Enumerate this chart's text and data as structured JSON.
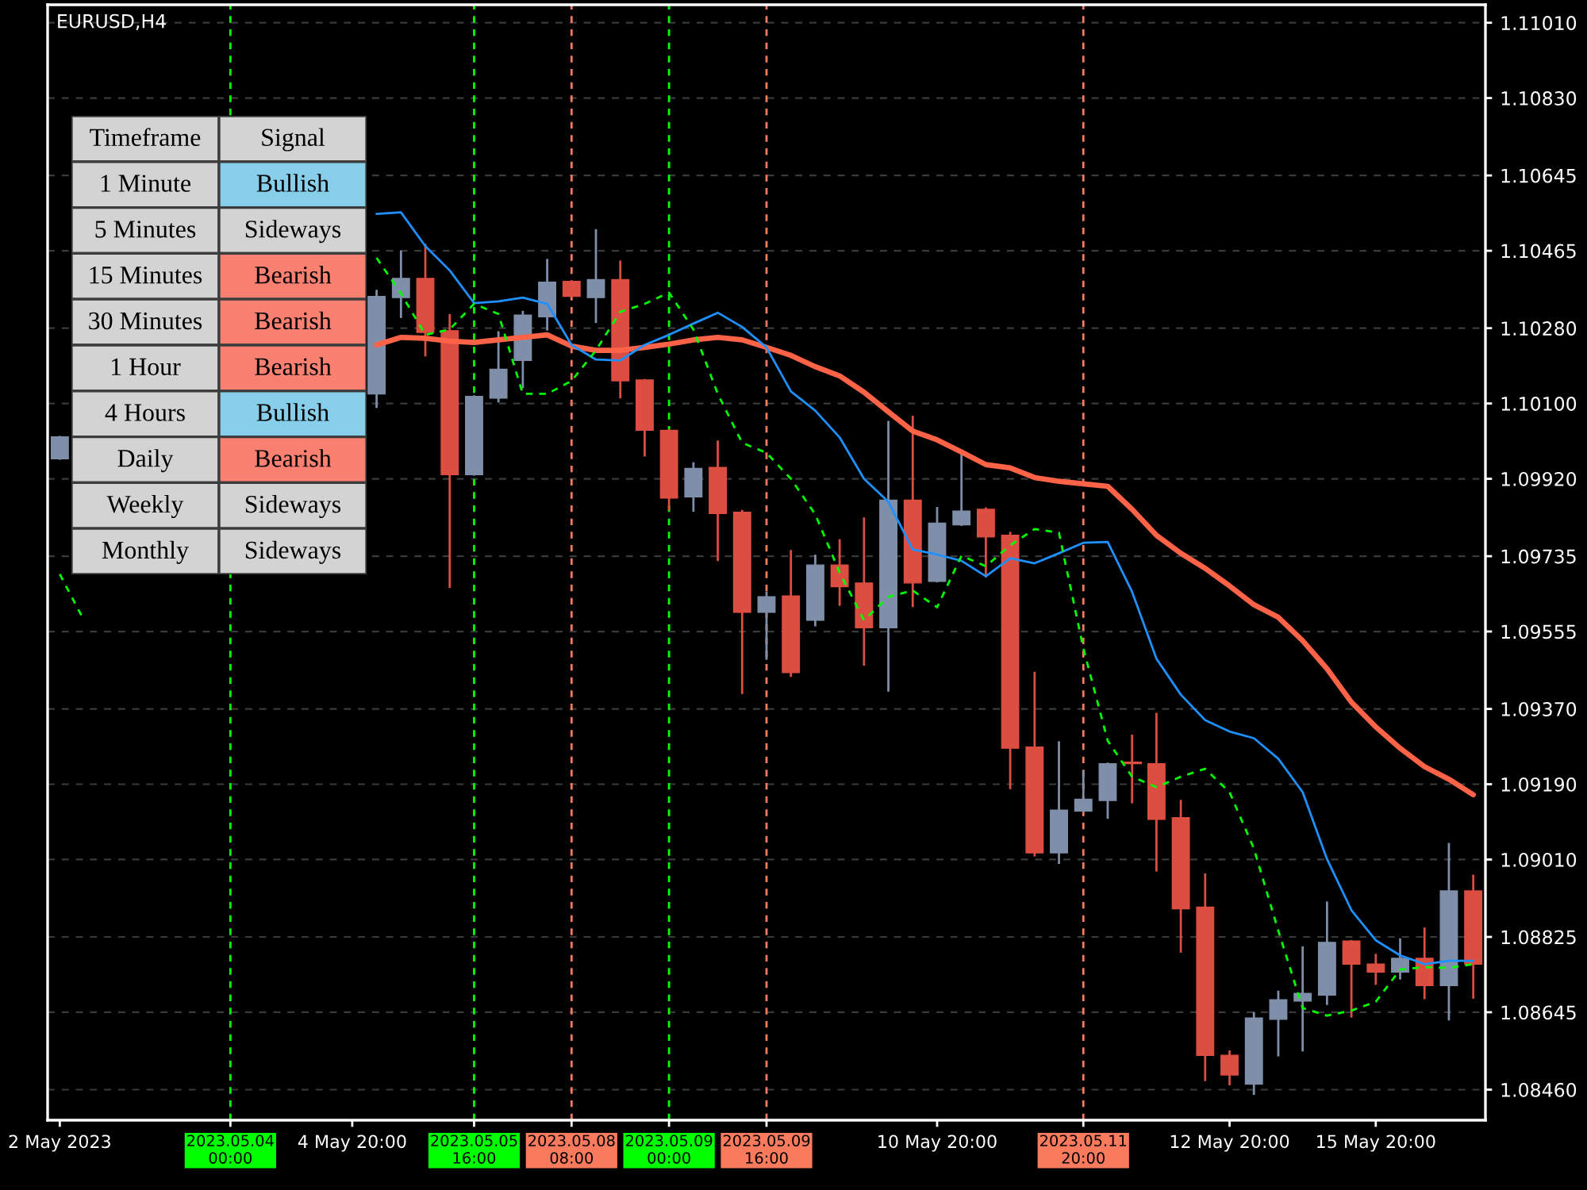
{
  "chart_data": [
    {
      "type": "candlestick",
      "title": "EURUSD,H4",
      "categories": [
        "2 May 2023",
        null,
        null,
        null,
        null,
        null,
        null,
        "2023.05.04 00:00",
        null,
        null,
        null,
        null,
        "4 May 20:00",
        null,
        null,
        null,
        null,
        "2023.05.05 16:00",
        null,
        null,
        null,
        "2023.05.08 08:00",
        null,
        null,
        null,
        "2023.05.09 00:00",
        null,
        null,
        null,
        "2023.05.09 16:00",
        null,
        null,
        null,
        null,
        null,
        null,
        "10 May 20:00",
        null,
        null,
        null,
        null,
        null,
        "2023.05.11 20:00",
        null,
        null,
        null,
        null,
        null,
        "12 May 20:00",
        null,
        null,
        null,
        null,
        null,
        "15 May 20:00",
        null,
        null,
        null,
        null
      ],
      "ohlc": [
        [
          1.09968,
          1.1002,
          1.09968,
          1.1002
        ],
        null,
        null,
        null,
        null,
        null,
        null,
        null,
        null,
        null,
        null,
        null,
        null,
        [
          1.10123,
          1.10369,
          1.10092,
          1.10356
        ],
        [
          1.10353,
          1.10463,
          1.10307,
          1.10399
        ],
        [
          1.10399,
          1.10479,
          1.10215,
          1.1027
        ],
        [
          1.10274,
          1.10311,
          1.09662,
          1.0993
        ],
        [
          1.0993,
          1.10117,
          1.0993,
          1.10117
        ],
        [
          1.10113,
          1.1027,
          1.10105,
          1.10182
        ],
        [
          1.10203,
          1.10319,
          1.10139,
          1.10311
        ],
        [
          1.10307,
          1.10443,
          1.10277,
          1.1039
        ],
        [
          1.10392,
          1.10392,
          1.10356,
          1.10356
        ],
        [
          1.10353,
          1.10514,
          1.10295,
          1.10396
        ],
        [
          1.10396,
          1.10439,
          1.10115,
          1.10154
        ],
        [
          1.10156,
          1.10156,
          1.09976,
          1.10036
        ],
        [
          1.10036,
          1.10036,
          1.09847,
          1.09874
        ],
        [
          1.09877,
          1.09957,
          1.09844,
          1.09945
        ],
        [
          1.09947,
          1.10009,
          1.09726,
          1.09837
        ],
        [
          1.0984,
          1.09843,
          1.09408,
          1.09601
        ],
        [
          1.09601,
          1.09648,
          1.0949,
          1.09638
        ],
        [
          1.0964,
          1.09747,
          1.09449,
          1.09457
        ],
        [
          1.09582,
          1.09736,
          1.0957,
          1.09714
        ],
        [
          1.09714,
          1.09773,
          1.09619,
          1.09662
        ],
        [
          1.09671,
          1.09825,
          1.09476,
          1.09564
        ],
        [
          1.09564,
          1.10056,
          1.09414,
          1.09869
        ],
        [
          1.09869,
          1.10068,
          1.09616,
          1.09671
        ],
        [
          1.09675,
          1.0985,
          1.09675,
          1.09814
        ],
        [
          1.0981,
          1.09982,
          1.0981,
          1.09843
        ],
        [
          1.09847,
          1.09849,
          1.09687,
          1.09781
        ],
        [
          1.09785,
          1.09791,
          1.09181,
          1.09276
        ],
        [
          1.09279,
          1.09456,
          1.0902,
          1.09026
        ],
        [
          1.09026,
          1.0929,
          1.09002,
          1.09128
        ],
        [
          1.09126,
          1.0922,
          1.09126,
          1.09154
        ],
        [
          1.09151,
          1.09239,
          1.0911,
          1.09239
        ],
        [
          1.09241,
          1.09306,
          1.09147,
          1.09241
        ],
        [
          1.09239,
          1.09358,
          1.08984,
          1.09106
        ],
        [
          1.0911,
          1.0915,
          1.0879,
          1.08892
        ],
        [
          1.08896,
          1.08974,
          1.08483,
          1.08542
        ],
        [
          1.08542,
          1.08551,
          1.08473,
          1.08495
        ],
        [
          1.08473,
          1.08643,
          1.0845,
          1.08631
        ],
        [
          1.08628,
          1.08694,
          1.08542,
          1.08675
        ],
        [
          1.08672,
          1.088,
          1.08554,
          1.0869
        ],
        [
          1.08686,
          1.08907,
          1.08665,
          1.08812
        ],
        [
          1.08815,
          1.08815,
          1.08635,
          1.0876
        ],
        [
          1.0876,
          1.08782,
          1.08713,
          1.08741
        ],
        [
          1.08741,
          1.08819,
          1.08726,
          1.08774
        ],
        [
          1.08774,
          1.08845,
          1.08679,
          1.08709
        ],
        [
          1.08709,
          1.09047,
          1.08628,
          1.08935
        ],
        [
          1.08935,
          1.08971,
          1.0868,
          1.0876
        ]
      ],
      "colors": [
        "#7f8fa9",
        null,
        null,
        null,
        null,
        null,
        null,
        null,
        null,
        null,
        null,
        null,
        null,
        "#7f8fa9",
        "#7f8fa9",
        "#dc4e41",
        "#dc4e41",
        "#7f8fa9",
        "#7f8fa9",
        "#7f8fa9",
        "#7f8fa9",
        "#dc4e41",
        "#7f8fa9",
        "#dc4e41",
        "#dc4e41",
        "#dc4e41",
        "#7f8fa9",
        "#dc4e41",
        "#dc4e41",
        "#7f8fa9",
        "#dc4e41",
        "#7f8fa9",
        "#dc4e41",
        "#dc4e41",
        "#7f8fa9",
        "#dc4e41",
        "#7f8fa9",
        "#7f8fa9",
        "#dc4e41",
        "#dc4e41",
        "#dc4e41",
        "#7f8fa9",
        "#7f8fa9",
        "#7f8fa9",
        "#dc4e41",
        "#dc4e41",
        "#dc4e41",
        "#dc4e41",
        "#dc4e41",
        "#7f8fa9",
        "#7f8fa9",
        "#7f8fa9",
        "#7f8fa9",
        "#dc4e41",
        "#dc4e41",
        "#7f8fa9",
        "#dc4e41",
        "#7f8fa9",
        "#dc4e41"
      ],
      "series": [
        {
          "type": "line",
          "color": "#ff6347",
          "line_style": "solid",
          "values": [
            null,
            null,
            null,
            null,
            null,
            null,
            null,
            null,
            null,
            null,
            null,
            null,
            null,
            1.1024,
            1.10258,
            1.10256,
            1.10249,
            1.10246,
            1.10252,
            1.10258,
            1.10264,
            1.10237,
            1.10227,
            1.10227,
            1.10234,
            1.10242,
            1.10252,
            1.10258,
            1.10252,
            1.10234,
            1.10215,
            1.10188,
            1.10166,
            1.10127,
            1.1008,
            1.10034,
            1.10013,
            1.09984,
            1.09954,
            1.09946,
            1.09923,
            1.09914,
            1.09908,
            1.09902,
            1.09847,
            1.09785,
            1.09742,
            1.09706,
            1.09664,
            1.09619,
            1.09589,
            1.09533,
            1.09466,
            1.09386,
            1.09327,
            1.09276,
            1.09232,
            1.09202,
            1.09165
          ]
        },
        {
          "type": "line",
          "color": "#1e90ff",
          "line_style": "solid",
          "values": [
            null,
            null,
            null,
            null,
            null,
            null,
            null,
            null,
            null,
            null,
            null,
            null,
            null,
            1.10553,
            1.10557,
            1.10476,
            1.10418,
            1.1034,
            1.10344,
            1.10353,
            1.10338,
            1.1024,
            1.10205,
            1.10203,
            1.1024,
            1.10264,
            1.10291,
            1.10317,
            1.10283,
            1.10234,
            1.10129,
            1.10083,
            1.10019,
            1.0992,
            1.09865,
            1.09751,
            1.09739,
            1.09724,
            1.09687,
            1.0973,
            1.09718,
            1.09742,
            1.09767,
            1.09769,
            1.0965,
            1.0949,
            1.09404,
            1.09343,
            1.09316,
            1.093,
            1.09251,
            1.09171,
            1.09011,
            1.08889,
            1.08817,
            1.08781,
            1.0876,
            1.08768,
            1.08768
          ]
        },
        {
          "type": "line",
          "color": "#00ff00",
          "line_style": "dashed",
          "values": [
            1.09692,
            1.09581,
            null,
            null,
            null,
            null,
            null,
            null,
            null,
            null,
            null,
            null,
            null,
            1.10448,
            1.10363,
            1.10264,
            1.10277,
            1.10338,
            1.10314,
            1.10123,
            1.10123,
            1.10154,
            1.10227,
            1.10319,
            1.10338,
            1.10365,
            1.10277,
            1.10123,
            1.10006,
            1.09982,
            1.0992,
            1.09835,
            1.09696,
            1.09582,
            1.09638,
            1.09653,
            1.09613,
            1.09736,
            1.09711,
            1.09761,
            1.098,
            1.09791,
            1.09515,
            1.09294,
            1.09208,
            1.09183,
            1.09208,
            1.09227,
            1.09171,
            1.09036,
            1.0884,
            1.08655,
            1.08637,
            1.08649,
            1.0867,
            1.08747,
            1.08753,
            1.08751,
            1.0876
          ]
        }
      ],
      "ylim": [
        1.08387,
        1.11053
      ],
      "yticks": [
        {
          "value": 1.0846,
          "label": "1.08460"
        },
        {
          "value": 1.08645,
          "label": "1.08645"
        },
        {
          "value": 1.08825,
          "label": "1.08825"
        },
        {
          "value": 1.0901,
          "label": "1.09010"
        },
        {
          "value": 1.0919,
          "label": "1.09190"
        },
        {
          "value": 1.0937,
          "label": "1.09370"
        },
        {
          "value": 1.09555,
          "label": "1.09555"
        },
        {
          "value": 1.09735,
          "label": "1.09735"
        },
        {
          "value": 1.0992,
          "label": "1.09920"
        },
        {
          "value": 1.101,
          "label": "1.10100"
        },
        {
          "value": 1.1028,
          "label": "1.10280"
        },
        {
          "value": 1.10465,
          "label": "1.10465"
        },
        {
          "value": 1.10645,
          "label": "1.10645"
        },
        {
          "value": 1.1083,
          "label": "1.10830"
        },
        {
          "value": 1.1101,
          "label": "1.11010"
        }
      ],
      "grid": "y",
      "ref_lines": [
        {
          "axis": "x",
          "value": "2023.05.04 00:00",
          "color": "#00ff00",
          "line_style": "dashed"
        },
        {
          "axis": "x",
          "value": "2023.05.05 16:00",
          "color": "#00ff00",
          "line_style": "dashed"
        },
        {
          "axis": "x",
          "value": "2023.05.08 08:00",
          "color": "#fa7a5e",
          "line_style": "dashed"
        },
        {
          "axis": "x",
          "value": "2023.05.09 00:00",
          "color": "#00ff00",
          "line_style": "dashed"
        },
        {
          "axis": "x",
          "value": "2023.05.09 16:00",
          "color": "#fa7a5e",
          "line_style": "dashed"
        },
        {
          "axis": "x",
          "value": "2023.05.11 20:00",
          "color": "#fa7a5e",
          "line_style": "dashed"
        }
      ]
    },
    {
      "type": "other",
      "annotations": [
        "Timeframe",
        "Signal",
        "1 Minute",
        "Bullish",
        "5 Minutes",
        "Sideways",
        "15 Minutes",
        "Bearish",
        "30 Minutes",
        "Bearish",
        "1 Hour",
        "Bearish",
        "4 Hours",
        "Bullish",
        "Daily",
        "Bearish",
        "Weekly",
        "Sideways",
        "Monthly",
        "Sideways"
      ],
      "colors": [
        "#d3d3d3",
        "#d3d3d3",
        "#d3d3d3",
        "#87ceeb",
        "#d3d3d3",
        "#d3d3d3",
        "#d3d3d3",
        "#fa8072",
        "#d3d3d3",
        "#fa8072",
        "#d3d3d3",
        "#fa8072",
        "#d3d3d3",
        "#87ceeb",
        "#d3d3d3",
        "#fa8072",
        "#d3d3d3",
        "#d3d3d3",
        "#d3d3d3",
        "#d3d3d3"
      ]
    }
  ]
}
